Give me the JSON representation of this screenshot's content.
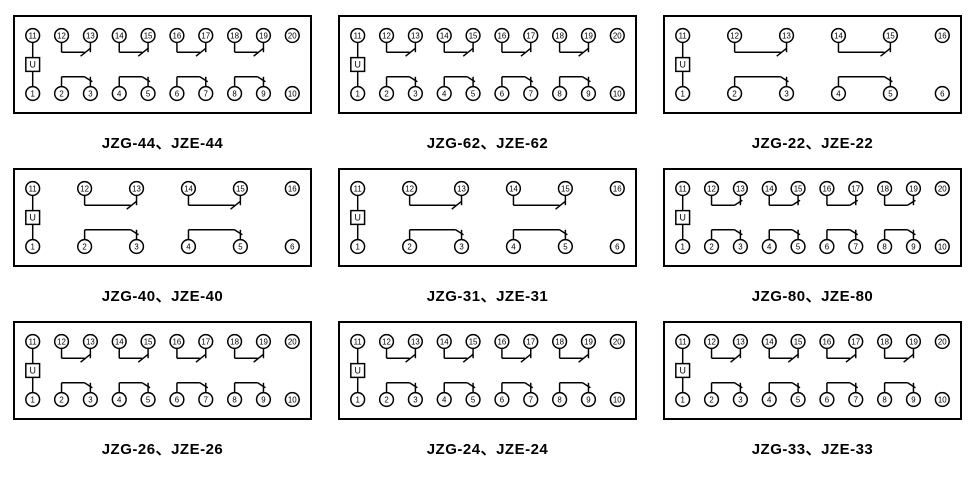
{
  "panels": [
    {
      "id": "p-44",
      "caption": "JZG-44、JZE-44",
      "terminals": 20,
      "topRow": [
        11,
        12,
        13,
        14,
        15,
        16,
        17,
        18,
        19,
        20
      ],
      "botRow": [
        1,
        2,
        3,
        4,
        5,
        6,
        7,
        8,
        9,
        10
      ],
      "topContacts": [
        {
          "type": "nc",
          "a": 1,
          "b": 2
        },
        {
          "type": "nc",
          "a": 3,
          "b": 4
        },
        {
          "type": "nc",
          "a": 5,
          "b": 6
        },
        {
          "type": "nc",
          "a": 7,
          "b": 8
        }
      ],
      "botContacts": [
        {
          "type": "no",
          "a": 1,
          "b": 2
        },
        {
          "type": "no",
          "a": 3,
          "b": 4
        },
        {
          "type": "no",
          "a": 5,
          "b": 6
        },
        {
          "type": "no",
          "a": 7,
          "b": 8
        }
      ]
    },
    {
      "id": "p-62",
      "caption": "JZG-62、JZE-62",
      "terminals": 20,
      "topRow": [
        11,
        12,
        13,
        14,
        15,
        16,
        17,
        18,
        19,
        20
      ],
      "botRow": [
        1,
        2,
        3,
        4,
        5,
        6,
        7,
        8,
        9,
        10
      ],
      "topContacts": [
        {
          "type": "nc",
          "a": 1,
          "b": 2
        },
        {
          "type": "nc",
          "a": 3,
          "b": 4
        },
        {
          "type": "nc",
          "a": 5,
          "b": 6
        },
        {
          "type": "nc",
          "a": 7,
          "b": 8
        }
      ],
      "botContacts": [
        {
          "type": "no",
          "a": 1,
          "b": 2
        },
        {
          "type": "no",
          "a": 3,
          "b": 4
        },
        {
          "type": "no",
          "a": 5,
          "b": 6
        },
        {
          "type": "no",
          "a": 7,
          "b": 8
        }
      ]
    },
    {
      "id": "p-22",
      "caption": "JZG-22、JZE-22",
      "terminals": 12,
      "topRow": [
        11,
        12,
        13,
        14,
        15,
        16
      ],
      "botRow": [
        1,
        2,
        3,
        4,
        5,
        6
      ],
      "topContacts": [
        {
          "type": "nc",
          "a": 1,
          "b": 2
        },
        {
          "type": "nc",
          "a": 3,
          "b": 4
        }
      ],
      "botContacts": [
        {
          "type": "no",
          "a": 1,
          "b": 2
        },
        {
          "type": "no",
          "a": 3,
          "b": 4
        }
      ]
    },
    {
      "id": "p-40",
      "caption": "JZG-40、JZE-40",
      "terminals": 12,
      "topRow": [
        11,
        12,
        13,
        14,
        15,
        16
      ],
      "botRow": [
        1,
        2,
        3,
        4,
        5,
        6
      ],
      "topContacts": [
        {
          "type": "nc",
          "a": 1,
          "b": 2
        },
        {
          "type": "nc",
          "a": 3,
          "b": 4
        }
      ],
      "botContacts": [
        {
          "type": "no",
          "a": 1,
          "b": 2
        },
        {
          "type": "no",
          "a": 3,
          "b": 4
        }
      ]
    },
    {
      "id": "p-31",
      "caption": "JZG-31、JZE-31",
      "terminals": 12,
      "topRow": [
        11,
        12,
        13,
        14,
        15,
        16
      ],
      "botRow": [
        1,
        2,
        3,
        4,
        5,
        6
      ],
      "topContacts": [
        {
          "type": "nc",
          "a": 1,
          "b": 2
        },
        {
          "type": "nc",
          "a": 3,
          "b": 4
        }
      ],
      "botContacts": [
        {
          "type": "no",
          "a": 1,
          "b": 2
        },
        {
          "type": "no",
          "a": 3,
          "b": 4
        }
      ]
    },
    {
      "id": "p-80",
      "caption": "JZG-80、JZE-80",
      "terminals": 20,
      "topRow": [
        11,
        12,
        13,
        14,
        15,
        16,
        17,
        18,
        19,
        20
      ],
      "botRow": [
        1,
        2,
        3,
        4,
        5,
        6,
        7,
        8,
        9,
        10
      ],
      "topContacts": [
        {
          "type": "no",
          "a": 1,
          "b": 2
        },
        {
          "type": "no",
          "a": 3,
          "b": 4
        },
        {
          "type": "no",
          "a": 5,
          "b": 6
        },
        {
          "type": "no",
          "a": 7,
          "b": 8
        }
      ],
      "botContacts": [
        {
          "type": "no",
          "a": 1,
          "b": 2
        },
        {
          "type": "no",
          "a": 3,
          "b": 4
        },
        {
          "type": "no",
          "a": 5,
          "b": 6
        },
        {
          "type": "no",
          "a": 7,
          "b": 8
        }
      ]
    },
    {
      "id": "p-26",
      "caption": "JZG-26、JZE-26",
      "terminals": 20,
      "topRow": [
        11,
        12,
        13,
        14,
        15,
        16,
        17,
        18,
        19,
        20
      ],
      "botRow": [
        1,
        2,
        3,
        4,
        5,
        6,
        7,
        8,
        9,
        10
      ],
      "topContacts": [
        {
          "type": "nc",
          "a": 1,
          "b": 2
        },
        {
          "type": "nc",
          "a": 3,
          "b": 4
        },
        {
          "type": "nc",
          "a": 5,
          "b": 6
        },
        {
          "type": "nc",
          "a": 7,
          "b": 8
        }
      ],
      "botContacts": [
        {
          "type": "no",
          "a": 1,
          "b": 2
        },
        {
          "type": "no",
          "a": 3,
          "b": 4
        },
        {
          "type": "no",
          "a": 5,
          "b": 6
        },
        {
          "type": "no",
          "a": 7,
          "b": 8
        }
      ]
    },
    {
      "id": "p-24",
      "caption": "JZG-24、JZE-24",
      "terminals": 20,
      "topRow": [
        11,
        12,
        13,
        14,
        15,
        16,
        17,
        18,
        19,
        20
      ],
      "botRow": [
        1,
        2,
        3,
        4,
        5,
        6,
        7,
        8,
        9,
        10
      ],
      "topContacts": [
        {
          "type": "nc",
          "a": 1,
          "b": 2
        },
        {
          "type": "nc",
          "a": 3,
          "b": 4
        },
        {
          "type": "nc",
          "a": 5,
          "b": 6
        },
        {
          "type": "nc",
          "a": 7,
          "b": 8
        }
      ],
      "botContacts": [
        {
          "type": "no",
          "a": 1,
          "b": 2
        },
        {
          "type": "no",
          "a": 3,
          "b": 4
        },
        {
          "type": "no",
          "a": 5,
          "b": 6
        },
        {
          "type": "no",
          "a": 7,
          "b": 8
        }
      ]
    },
    {
      "id": "p-33",
      "caption": "JZG-33、JZE-33",
      "terminals": 20,
      "topRow": [
        11,
        12,
        13,
        14,
        15,
        16,
        17,
        18,
        19,
        20
      ],
      "botRow": [
        1,
        2,
        3,
        4,
        5,
        6,
        7,
        8,
        9,
        10
      ],
      "topContacts": [
        {
          "type": "nc",
          "a": 1,
          "b": 2
        },
        {
          "type": "nc",
          "a": 3,
          "b": 4
        },
        {
          "type": "nc",
          "a": 5,
          "b": 6
        },
        {
          "type": "nc",
          "a": 7,
          "b": 8
        }
      ],
      "botContacts": [
        {
          "type": "no",
          "a": 1,
          "b": 2
        },
        {
          "type": "no",
          "a": 3,
          "b": 4
        },
        {
          "type": "no",
          "a": 5,
          "b": 6
        },
        {
          "type": "no",
          "a": 7,
          "b": 8
        }
      ]
    }
  ],
  "style": {
    "terminal_radius": 7,
    "stroke": "#000",
    "stroke_width": 1.5,
    "font_size_terminal": 8,
    "font_size_caption": 15,
    "u_label": "U",
    "background": "#ffffff"
  }
}
